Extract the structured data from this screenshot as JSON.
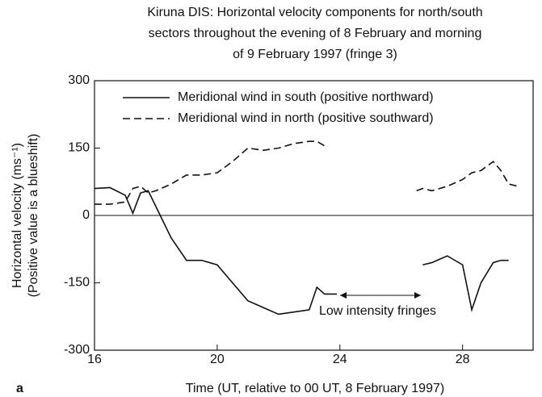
{
  "chart_data": {
    "type": "line",
    "title": [
      "Kiruna DIS: Horizontal velocity components for north/south",
      "sectors throughout the evening of 8 February and morning",
      "of 9 February 1997 (fringe 3)"
    ],
    "xlabel": "Time (UT, relative to 00 UT, 8 February 1997)",
    "ylabel": [
      "Horizontal velocity (ms⁻¹)",
      "(Positive value is a blueshift)"
    ],
    "panel_label": "a",
    "annotation": "Low intensity fringes",
    "x": [
      16,
      16.5,
      17,
      17.25,
      17.5,
      17.75,
      18,
      18.5,
      19,
      19.5,
      20,
      20.5,
      21,
      21.5,
      22,
      22.5,
      23,
      23.25,
      23.5,
      23.9,
      26.5,
      26.7,
      27,
      27.5,
      28,
      28.3,
      28.6,
      29,
      29.25,
      29.5,
      29.8
    ],
    "series": [
      {
        "name": "Meridional wind in south (positive northward)",
        "color": "#111111",
        "dash": "solid",
        "values": [
          60,
          62,
          45,
          5,
          50,
          55,
          20,
          -50,
          -100,
          -100,
          -110,
          -150,
          -190,
          -205,
          -220,
          -215,
          -210,
          -160,
          -175,
          -175,
          null,
          -110,
          -105,
          -90,
          -110,
          -210,
          -150,
          -105,
          -100,
          -100,
          null
        ]
      },
      {
        "name": "Meridional wind in north (positive southward)",
        "color": "#111111",
        "dash": "dashed",
        "values": [
          25,
          25,
          30,
          60,
          65,
          50,
          55,
          70,
          90,
          90,
          95,
          120,
          150,
          145,
          150,
          160,
          165,
          165,
          155,
          null,
          55,
          60,
          55,
          65,
          80,
          95,
          100,
          120,
          100,
          70,
          65
        ]
      }
    ],
    "xlim": [
      16,
      30.3
    ],
    "xticks": [
      16,
      20,
      24,
      28
    ],
    "ylim": [
      -300,
      300
    ],
    "yticks": [
      -300,
      -150,
      0,
      150,
      300
    ]
  }
}
